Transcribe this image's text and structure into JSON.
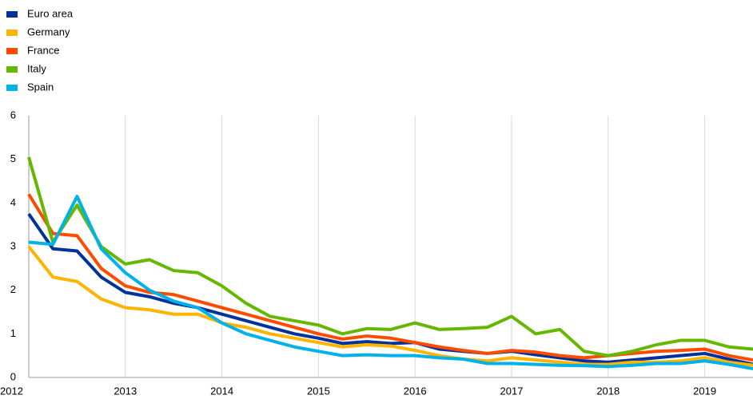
{
  "chart_data": {
    "type": "line",
    "x": [
      2012,
      2012.25,
      2012.5,
      2012.75,
      2013,
      2013.25,
      2013.5,
      2013.75,
      2014,
      2014.25,
      2014.5,
      2014.75,
      2015,
      2015.25,
      2015.5,
      2015.75,
      2016,
      2016.25,
      2016.5,
      2016.75,
      2017,
      2017.25,
      2017.5,
      2017.75,
      2018,
      2018.25,
      2018.5,
      2018.75,
      2019,
      2019.25,
      2019.5
    ],
    "series": [
      {
        "name": "Euro area",
        "color": "#003299",
        "values": [
          3.75,
          2.95,
          2.9,
          2.3,
          1.95,
          1.85,
          1.7,
          1.6,
          1.45,
          1.3,
          1.15,
          1.0,
          0.9,
          0.78,
          0.82,
          0.78,
          0.8,
          0.65,
          0.6,
          0.55,
          0.6,
          0.52,
          0.45,
          0.38,
          0.35,
          0.4,
          0.45,
          0.5,
          0.55,
          0.42,
          0.3
        ]
      },
      {
        "name": "Germany",
        "color": "#ffb400",
        "values": [
          3.0,
          2.3,
          2.2,
          1.8,
          1.6,
          1.55,
          1.45,
          1.45,
          1.25,
          1.15,
          1.0,
          0.9,
          0.8,
          0.7,
          0.75,
          0.72,
          0.62,
          0.5,
          0.42,
          0.38,
          0.45,
          0.4,
          0.35,
          0.3,
          0.3,
          0.35,
          0.35,
          0.38,
          0.45,
          0.35,
          0.28
        ]
      },
      {
        "name": "France",
        "color": "#ff4b00",
        "values": [
          4.2,
          3.3,
          3.25,
          2.5,
          2.1,
          1.95,
          1.9,
          1.75,
          1.6,
          1.45,
          1.3,
          1.15,
          1.0,
          0.88,
          0.95,
          0.9,
          0.8,
          0.7,
          0.62,
          0.55,
          0.62,
          0.58,
          0.5,
          0.45,
          0.5,
          0.55,
          0.6,
          0.62,
          0.65,
          0.5,
          0.4
        ]
      },
      {
        "name": "Italy",
        "color": "#65b800",
        "values": [
          5.05,
          3.1,
          3.95,
          3.0,
          2.6,
          2.7,
          2.45,
          2.4,
          2.1,
          1.7,
          1.4,
          1.3,
          1.2,
          1.0,
          1.12,
          1.1,
          1.25,
          1.1,
          1.12,
          1.15,
          1.4,
          1.0,
          1.1,
          0.6,
          0.5,
          0.6,
          0.75,
          0.85,
          0.85,
          0.7,
          0.65
        ]
      },
      {
        "name": "Spain",
        "color": "#00b1ea",
        "values": [
          3.1,
          3.05,
          4.15,
          2.95,
          2.4,
          2.0,
          1.75,
          1.6,
          1.25,
          1.0,
          0.85,
          0.7,
          0.6,
          0.5,
          0.52,
          0.5,
          0.5,
          0.45,
          0.42,
          0.32,
          0.32,
          0.3,
          0.28,
          0.27,
          0.25,
          0.28,
          0.32,
          0.32,
          0.38,
          0.3,
          0.2
        ]
      }
    ],
    "xlim": [
      2012,
      2019.5
    ],
    "xticks": [
      2012,
      2013,
      2014,
      2015,
      2016,
      2017,
      2018,
      2019
    ],
    "ylim": [
      0,
      6
    ],
    "yticks": [
      0,
      1,
      2,
      3,
      4,
      5,
      6
    ],
    "grid": "x",
    "legend": "top-left"
  }
}
